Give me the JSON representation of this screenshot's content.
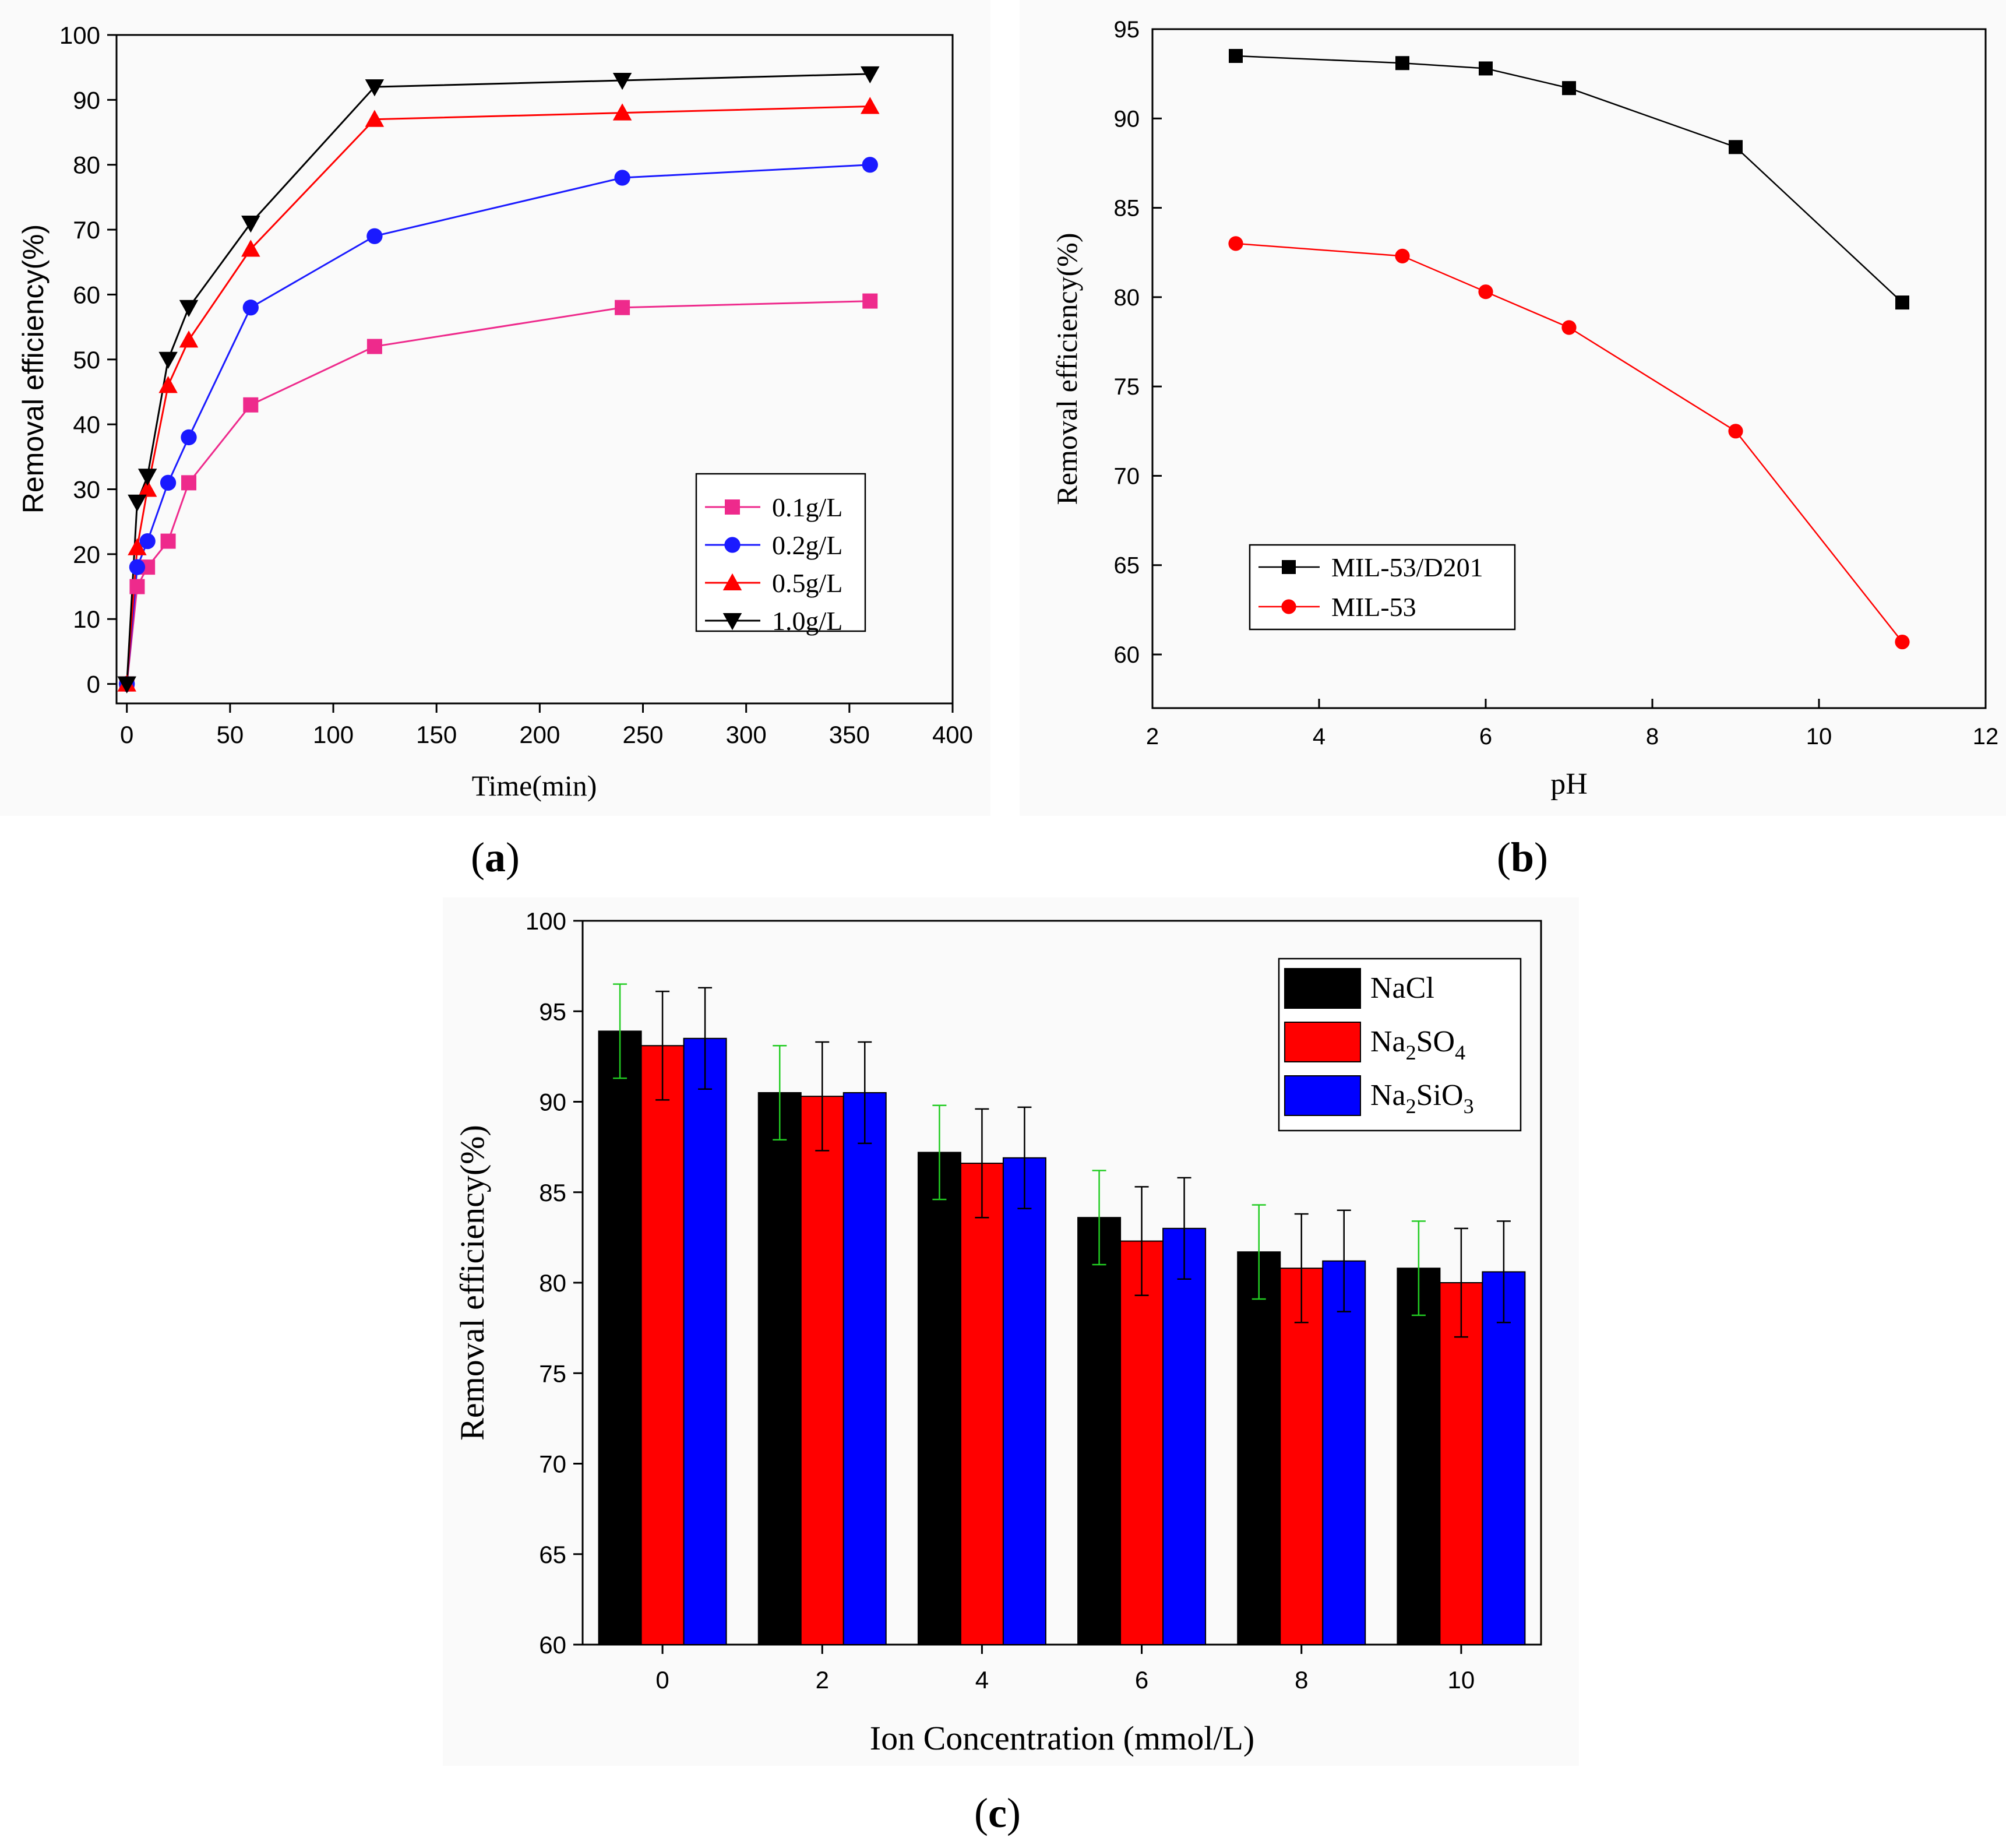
{
  "colors": {
    "pink": "#ee2a8c",
    "blue": "#1a1aff",
    "red": "#ff0000",
    "black": "#000000",
    "green": "#22cc22",
    "panel_bg": "#fafafa"
  },
  "panels": {
    "a": {
      "caption_open": "(",
      "caption_letter": "a",
      "caption_close": ")"
    },
    "b": {
      "caption_open": "(",
      "caption_letter": "b",
      "caption_close": ")"
    },
    "c": {
      "caption_open": "(",
      "caption_letter": "c",
      "caption_close": ")"
    }
  },
  "chart_data": [
    {
      "id": "a",
      "type": "line",
      "title": "",
      "xlabel": "Time(min)",
      "ylabel": "Removal efficiency(%)",
      "xlim": [
        -5,
        400
      ],
      "ylim": [
        -3,
        100
      ],
      "xticks": [
        0,
        50,
        100,
        150,
        200,
        250,
        300,
        350,
        400
      ],
      "yticks": [
        0,
        10,
        20,
        30,
        40,
        50,
        60,
        70,
        80,
        90,
        100
      ],
      "x": [
        0,
        5,
        10,
        20,
        30,
        60,
        120,
        240,
        360
      ],
      "legend_position": "lower-right",
      "series": [
        {
          "name": "0.1g/L",
          "marker": "square",
          "color": "#ee2a8c",
          "values": [
            0,
            15,
            18,
            22,
            31,
            43,
            52,
            58,
            59
          ]
        },
        {
          "name": "0.2g/L",
          "marker": "circle",
          "color": "#1a1aff",
          "values": [
            0,
            18,
            22,
            31,
            38,
            58,
            69,
            78,
            80
          ]
        },
        {
          "name": "0.5g/L",
          "marker": "triangle-up",
          "color": "#ff0000",
          "values": [
            0,
            21,
            30,
            46,
            53,
            67,
            87,
            88,
            89
          ]
        },
        {
          "name": "1.0g/L",
          "marker": "triangle-down",
          "color": "#000000",
          "values": [
            0,
            28,
            32,
            50,
            58,
            71,
            92,
            93,
            94
          ]
        }
      ]
    },
    {
      "id": "b",
      "type": "line",
      "title": "",
      "xlabel": "pH",
      "ylabel": "Removal efficiency(%)",
      "xlim": [
        2,
        12
      ],
      "ylim": [
        57,
        95
      ],
      "xticks": [
        2,
        4,
        6,
        8,
        10,
        12
      ],
      "yticks": [
        60,
        65,
        70,
        75,
        80,
        85,
        90,
        95
      ],
      "legend_position": "lower-left",
      "series": [
        {
          "name": "MIL-53/D201",
          "marker": "square",
          "color": "#000000",
          "x": [
            3,
            5,
            6,
            7,
            9,
            11
          ],
          "values": [
            93.5,
            93.1,
            92.8,
            91.7,
            88.4,
            79.7
          ]
        },
        {
          "name": "MIL-53",
          "marker": "circle",
          "color": "#ff0000",
          "x": [
            3,
            5,
            6,
            7,
            9,
            11
          ],
          "values": [
            83.0,
            82.3,
            80.3,
            78.3,
            72.5,
            60.7
          ]
        }
      ]
    },
    {
      "id": "c",
      "type": "bar",
      "title": "",
      "xlabel": "Ion Concentration (mmol/L)",
      "ylabel": "Removal efficiency(%)",
      "xlim": [
        -1,
        11
      ],
      "ylim": [
        60,
        100
      ],
      "xticks": [
        0,
        2,
        4,
        6,
        8,
        10
      ],
      "yticks": [
        60,
        65,
        70,
        75,
        80,
        85,
        90,
        95,
        100
      ],
      "categories": [
        "0",
        "2",
        "4",
        "6",
        "8",
        "10"
      ],
      "legend_position": "top-right",
      "series": [
        {
          "name": "NaCl",
          "label_base": "NaCl",
          "color": "#000000",
          "error_color": "#22cc22",
          "values": [
            93.9,
            90.5,
            87.2,
            83.6,
            81.7,
            80.8
          ],
          "errors": [
            2.6,
            2.6,
            2.6,
            2.6,
            2.6,
            2.6
          ]
        },
        {
          "name": "Na2SO4",
          "label_base": "Na",
          "sub1": "2",
          "mid": "SO",
          "sub2": "4",
          "color": "#ff0000",
          "error_color": "#000000",
          "values": [
            93.1,
            90.3,
            86.6,
            82.3,
            80.8,
            80.0
          ],
          "errors": [
            3.0,
            3.0,
            3.0,
            3.0,
            3.0,
            3.0
          ]
        },
        {
          "name": "Na2SiO3",
          "label_base": "Na",
          "sub1": "2",
          "mid": "SiO",
          "sub2": "3",
          "color": "#0000ff",
          "error_color": "#000000",
          "values": [
            93.5,
            90.5,
            86.9,
            83.0,
            81.2,
            80.6
          ],
          "errors": [
            2.8,
            2.8,
            2.8,
            2.8,
            2.8,
            2.8
          ]
        }
      ]
    }
  ]
}
